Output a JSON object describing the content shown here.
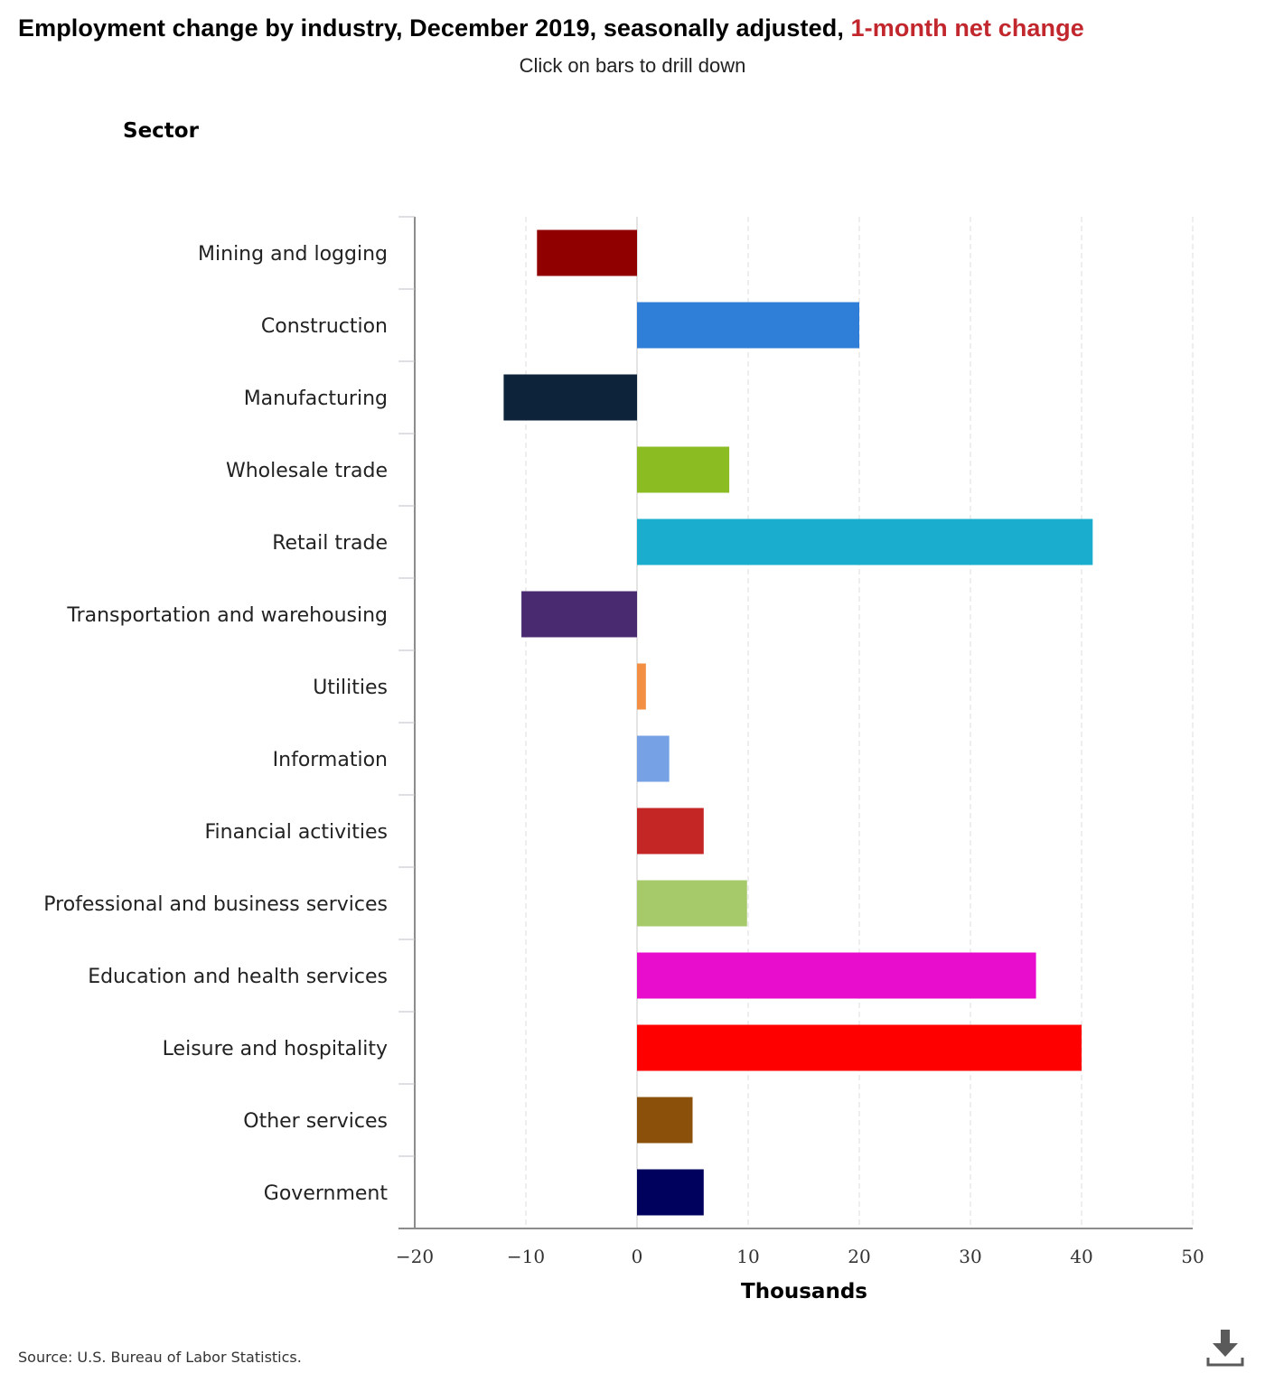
{
  "header": {
    "title_main": "Employment change by industry, December 2019, seasonally adjusted,",
    "title_accent": "1-month net change",
    "subtitle": "Click on bars to drill down"
  },
  "footer": {
    "source": "Source: U.S. Bureau of Labor Statistics."
  },
  "icons": {
    "download": "download-icon"
  },
  "chart_data": {
    "type": "bar",
    "orientation": "horizontal",
    "ylabel": "Sector",
    "xlabel": "Thousands",
    "xlim": [
      -20,
      50
    ],
    "xticks": [
      -20,
      -10,
      0,
      10,
      20,
      30,
      40,
      50
    ],
    "xtick_labels": [
      "−20",
      "−10",
      "0",
      "10",
      "20",
      "30",
      "40",
      "50"
    ],
    "grid": true,
    "categories": [
      "Mining and logging",
      "Construction",
      "Manufacturing",
      "Wholesale trade",
      "Retail trade",
      "Transportation and warehousing",
      "Utilities",
      "Information",
      "Financial activities",
      "Professional and business services",
      "Education and health services",
      "Leisure and hospitality",
      "Other services",
      "Government"
    ],
    "values": [
      -9,
      20,
      -12,
      8.3,
      41,
      -10.4,
      0.8,
      2.9,
      6,
      9.9,
      35.9,
      40,
      5,
      6
    ],
    "colors": [
      "#910000",
      "#2f7ed8",
      "#0d233a",
      "#8bbc21",
      "#1aadce",
      "#492970",
      "#f28f43",
      "#77a1e5",
      "#c42525",
      "#a6c96a",
      "#e80ccc",
      "#ff0000",
      "#8b5009",
      "#00005d"
    ]
  }
}
